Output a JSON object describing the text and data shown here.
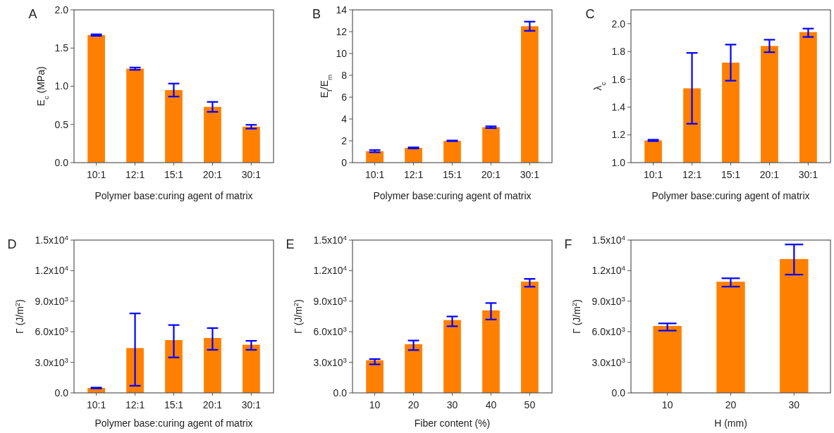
{
  "chart_data": [
    {
      "type": "bar",
      "annotations": [
        "A"
      ],
      "ylabel": "E$_{c}$ (MPa)",
      "xlabel": "Polymer base:curing agent of matrix",
      "categories": [
        "10:1",
        "12:1",
        "15:1",
        "20:1",
        "30:1"
      ],
      "color": "#ff8000",
      "values": [
        1.67,
        1.23,
        0.95,
        0.73,
        0.47
      ],
      "errors": [
        [
          1.66,
          1.68
        ],
        [
          1.215,
          1.245
        ],
        [
          0.865,
          1.035
        ],
        [
          0.665,
          0.795
        ],
        [
          0.445,
          0.495
        ]
      ],
      "ylim": [
        0,
        2.0
      ],
      "yticks": [
        {
          "value": 0,
          "label": "0.0"
        },
        0.5,
        {
          "value": 1,
          "label": "1.0"
        },
        1.5,
        {
          "value": 2,
          "label": "2.0"
        }
      ]
    },
    {
      "type": "bar",
      "annotations": [
        "B"
      ],
      "ylabel": "E$_{f}$/E$_{m}$",
      "xlabel": "Polymer base:curing agent of matrix",
      "categories": [
        "10:1",
        "12:1",
        "15:1",
        "20:1",
        "30:1"
      ],
      "color": "#ff8000",
      "values": [
        1.05,
        1.35,
        2.0,
        3.25,
        12.5
      ],
      "errors": [
        [
          0.95,
          1.15
        ],
        [
          1.3,
          1.4
        ],
        [
          1.97,
          2.03
        ],
        [
          3.17,
          3.33
        ],
        [
          12.08,
          12.92
        ]
      ],
      "ylim": [
        0,
        14
      ],
      "yticks": [
        0,
        2,
        4,
        6,
        8,
        10,
        12,
        14
      ]
    },
    {
      "type": "bar",
      "annotations": [
        "C"
      ],
      "ylabel": "λ$_{c}$",
      "xlabel": "Polymer base:curing agent of matrix",
      "categories": [
        "10:1",
        "12:1",
        "15:1",
        "20:1",
        "30:1"
      ],
      "color": "#ff8000",
      "values": [
        1.16,
        1.535,
        1.72,
        1.84,
        1.94
      ],
      "errors": [
        [
          1.155,
          1.165
        ],
        [
          1.28,
          1.79
        ],
        [
          1.59,
          1.85
        ],
        [
          1.795,
          1.885
        ],
        [
          1.905,
          1.965
        ]
      ],
      "ylim": [
        1.0,
        2.1
      ],
      "yticks": [
        {
          "value": 1,
          "label": "1.0"
        },
        1.2,
        1.4,
        1.6,
        1.8,
        {
          "value": 2,
          "label": "2.0"
        }
      ]
    },
    {
      "type": "bar",
      "annotations": [
        "D"
      ],
      "ylabel": "Γ (J/m$^{2}$)",
      "xlabel": "Polymer base:curing agent of matrix",
      "categories": [
        "10:1",
        "12:1",
        "15:1",
        "20:1",
        "30:1"
      ],
      "color": "#ff8000",
      "values": [
        480,
        4400,
        5180,
        5390,
        4730
      ],
      "errors": [
        [
          440,
          520
        ],
        [
          700,
          7800
        ],
        [
          3480,
          6660
        ],
        [
          4230,
          6360
        ],
        [
          4230,
          5110
        ]
      ],
      "ylim": [
        0,
        15000
      ],
      "yticks": [
        {
          "value": 0,
          "label": "0.0"
        },
        {
          "value": 3000,
          "label": "3.0x10$^{3}$"
        },
        {
          "value": 6000,
          "label": "6.0x10$^{3}$"
        },
        {
          "value": 9000,
          "label": "9.0x10$^{3}$"
        },
        {
          "value": 12000,
          "label": "1.2x10$^{4}$"
        },
        {
          "value": 15000,
          "label": "1.5x10$^{4}$"
        }
      ]
    },
    {
      "type": "bar",
      "annotations": [
        "E"
      ],
      "ylabel": "Γ (J/m$^{2}$)",
      "xlabel": "Fiber content (%)",
      "categories": [
        "10",
        "20",
        "30",
        "40",
        "50"
      ],
      "color": "#ff8000",
      "values": [
        3200,
        4780,
        7150,
        8100,
        10920
      ],
      "errors": [
        [
          2800,
          3320
        ],
        [
          4200,
          5140
        ],
        [
          6540,
          7500
        ],
        [
          7200,
          8820
        ],
        [
          10420,
          11190
        ]
      ],
      "ylim": [
        0,
        15000
      ],
      "yticks": [
        {
          "value": 0,
          "label": "0.0"
        },
        {
          "value": 3000,
          "label": "3.0x10$^{3}$"
        },
        {
          "value": 6000,
          "label": "6.0x10$^{3}$"
        },
        {
          "value": 9000,
          "label": "9.0x10$^{3}$"
        },
        {
          "value": 12000,
          "label": "1.2x10$^{4}$"
        },
        {
          "value": 15000,
          "label": "1.5x10$^{4}$"
        }
      ]
    },
    {
      "type": "bar",
      "annotations": [
        "F"
      ],
      "ylabel": "Γ (J/m$^{2}$)",
      "xlabel": "H (mm)",
      "categories": [
        "10",
        "20",
        "30"
      ],
      "color": "#ff8000",
      "values": [
        6570,
        10910,
        13140
      ],
      "errors": [
        [
          6110,
          6820
        ],
        [
          10430,
          11250
        ],
        [
          11610,
          14570
        ]
      ],
      "ylim": [
        0,
        15000
      ],
      "yticks": [
        {
          "value": 0,
          "label": "0.0"
        },
        {
          "value": 3000,
          "label": "3.0x10$^{3}$"
        },
        {
          "value": 6000,
          "label": "6.0x10$^{3}$"
        },
        {
          "value": 9000,
          "label": "9.0x10$^{3}$"
        },
        {
          "value": 12000,
          "label": "1.2x10$^{4}$"
        },
        {
          "value": 15000,
          "label": "1.5x10$^{4}$"
        }
      ]
    }
  ]
}
